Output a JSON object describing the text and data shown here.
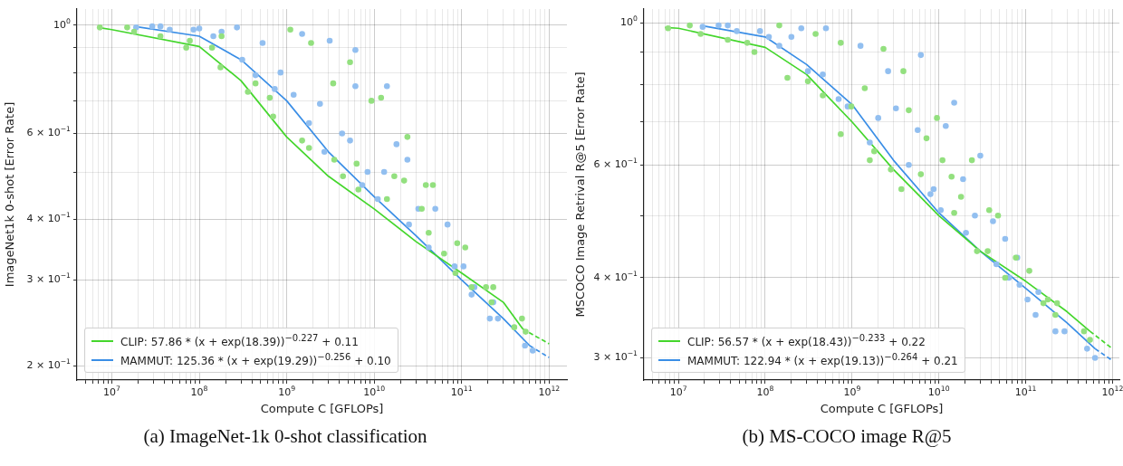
{
  "chart_data": [
    {
      "type": "scatter",
      "title": "(a) ImageNet-1k 0-shot classification",
      "xlabel": "Compute C [GFLOPs]",
      "ylabel": "ImageNet1k 0-shot [Error Rate]",
      "log": "xy",
      "grid": true,
      "legend": "bottom left",
      "marker": "circle",
      "xlim": [
        4000000.0,
        1600000000000.0
      ],
      "ylim": [
        0.187,
        1.08
      ],
      "xticks": [
        {
          "value": 5000000.0,
          "label": null
        },
        {
          "value": 6000000.0,
          "label": null
        },
        {
          "value": 7000000.0,
          "label": null
        },
        {
          "value": 8000000.0,
          "label": null
        },
        {
          "value": 9000000.0,
          "label": null
        },
        {
          "value": 10000000.0,
          "label": "10$^{7}$"
        },
        {
          "value": 20000000.0,
          "label": null
        },
        {
          "value": 30000000.0,
          "label": null
        },
        {
          "value": 40000000.0,
          "label": null
        },
        {
          "value": 50000000.0,
          "label": null
        },
        {
          "value": 60000000.0,
          "label": null
        },
        {
          "value": 70000000.0,
          "label": null
        },
        {
          "value": 80000000.0,
          "label": null
        },
        {
          "value": 90000000.0,
          "label": null
        },
        {
          "value": 100000000.0,
          "label": "10$^{8}$"
        },
        {
          "value": 200000000.0,
          "label": null
        },
        {
          "value": 300000000.0,
          "label": null
        },
        {
          "value": 400000000.0,
          "label": null
        },
        {
          "value": 500000000.0,
          "label": null
        },
        {
          "value": 600000000.0,
          "label": null
        },
        {
          "value": 700000000.0,
          "label": null
        },
        {
          "value": 800000000.0,
          "label": null
        },
        {
          "value": 900000000.0,
          "label": null
        },
        {
          "value": 1000000000.0,
          "label": "10$^{9}$"
        },
        {
          "value": 2000000000.0,
          "label": null
        },
        {
          "value": 3000000000.0,
          "label": null
        },
        {
          "value": 4000000000.0,
          "label": null
        },
        {
          "value": 5000000000.0,
          "label": null
        },
        {
          "value": 6000000000.0,
          "label": null
        },
        {
          "value": 7000000000.0,
          "label": null
        },
        {
          "value": 8000000000.0,
          "label": null
        },
        {
          "value": 9000000000.0,
          "label": null
        },
        {
          "value": 10000000000.0,
          "label": "10$^{10}$"
        },
        {
          "value": 20000000000.0,
          "label": null
        },
        {
          "value": 30000000000.0,
          "label": null
        },
        {
          "value": 40000000000.0,
          "label": null
        },
        {
          "value": 50000000000.0,
          "label": null
        },
        {
          "value": 60000000000.0,
          "label": null
        },
        {
          "value": 70000000000.0,
          "label": null
        },
        {
          "value": 80000000000.0,
          "label": null
        },
        {
          "value": 90000000000.0,
          "label": null
        },
        {
          "value": 100000000000.0,
          "label": "10$^{11}$"
        },
        {
          "value": 200000000000.0,
          "label": null
        },
        {
          "value": 300000000000.0,
          "label": null
        },
        {
          "value": 400000000000.0,
          "label": null
        },
        {
          "value": 500000000000.0,
          "label": null
        },
        {
          "value": 600000000000.0,
          "label": null
        },
        {
          "value": 700000000000.0,
          "label": null
        },
        {
          "value": 800000000000.0,
          "label": null
        },
        {
          "value": 900000000000.0,
          "label": null
        },
        {
          "value": 1000000000000.0,
          "label": "10$^{12}$"
        }
      ],
      "yticks": [
        {
          "value": 0.2,
          "label": "2 × 10$^{−1}$"
        },
        {
          "value": 0.3,
          "label": "3 × 10$^{−1}$"
        },
        {
          "value": 0.4,
          "label": "4 × 10$^{−1}$"
        },
        {
          "value": 0.5,
          "label": null
        },
        {
          "value": 0.6,
          "label": "6 × 10$^{−1}$"
        },
        {
          "value": 0.7,
          "label": null
        },
        {
          "value": 0.8,
          "label": null
        },
        {
          "value": 0.9,
          "label": null
        },
        {
          "value": 1,
          "label": "10$^{0}$"
        }
      ],
      "series": [
        {
          "color": "#93e07f",
          "x": [
            7300000.0,
            15000000.0,
            18000000.0,
            36000000.0,
            71000000.0,
            78000000.0,
            140000000.0,
            175000000.0,
            180000000.0,
            360000000.0,
            440000000.0,
            700000000.0,
            640000000.0,
            1500000000.0,
            1800000000.0,
            1100000000.0,
            1900000000.0,
            3500000000.0,
            4400000000.0,
            3400000000.0,
            5300000000.0,
            6300000000.0,
            6600000000.0,
            9300000000.0,
            12000000000.0,
            17000000000.0,
            14000000000.0,
            22000000000.0,
            24000000000.0,
            35000000000.0,
            39000000000.0,
            47000000000.0,
            42000000000.0,
            63000000000.0,
            89000000000.0,
            85000000000.0,
            110000000000.0,
            130000000000.0,
            190000000000.0,
            230000000000.0,
            220000000000.0,
            400000000000.0,
            490000000000.0,
            540000000000.0
          ],
          "values": [
            0.99,
            0.99,
            0.97,
            0.95,
            0.9,
            0.93,
            0.9,
            0.82,
            0.95,
            0.73,
            0.76,
            0.65,
            0.71,
            0.58,
            0.56,
            0.98,
            0.92,
            0.53,
            0.49,
            0.76,
            0.84,
            0.52,
            0.46,
            0.7,
            0.71,
            0.49,
            0.44,
            0.48,
            0.59,
            0.42,
            0.47,
            0.47,
            0.375,
            0.34,
            0.357,
            0.31,
            0.35,
            0.29,
            0.29,
            0.29,
            0.27,
            0.24,
            0.25,
            0.235
          ]
        },
        {
          "color": "#92bff0",
          "x": [
            19000000.0,
            29000000.0,
            36000000.0,
            46000000.0,
            86000000.0,
            100000000.0,
            145000000.0,
            180000000.0,
            270000000.0,
            310000000.0,
            440000000.0,
            530000000.0,
            730000000.0,
            850000000.0,
            1200000000.0,
            1500000000.0,
            1800000000.0,
            2400000000.0,
            3100000000.0,
            2700000000.0,
            4300000000.0,
            5300000000.0,
            6100000000.0,
            6100000000.0,
            7300000000.0,
            8400000000.0,
            11000000000.0,
            14000000000.0,
            13000000000.0,
            18000000000.0,
            24000000000.0,
            25000000000.0,
            32000000000.0,
            42000000000.0,
            50000000000.0,
            69000000000.0,
            83000000000.0,
            105000000000.0,
            140000000000.0,
            130000000000.0,
            210000000000.0,
            230000000000.0,
            260000000000.0,
            530000000000.0,
            650000000000.0
          ],
          "values": [
            0.99,
            0.995,
            0.995,
            0.98,
            0.98,
            0.985,
            0.95,
            0.97,
            0.99,
            0.85,
            0.79,
            0.92,
            0.74,
            0.8,
            0.72,
            0.96,
            0.63,
            0.69,
            0.93,
            0.55,
            0.6,
            0.58,
            0.89,
            0.75,
            0.47,
            0.5,
            0.44,
            0.75,
            0.5,
            0.57,
            0.53,
            0.39,
            0.42,
            0.35,
            0.42,
            0.39,
            0.32,
            0.32,
            0.29,
            0.28,
            0.25,
            0.27,
            0.25,
            0.22,
            0.215
          ]
        },
        {
          "type": "line",
          "marker": "none",
          "name": "CLIP: 57.86 * (x + exp(18.39))$^{−0.227}$ + 0.11",
          "color": "#44d62c",
          "x": [
            7000000.0,
            10000000.0,
            100000000.0,
            300000000.0,
            1000000000.0,
            3000000000.0,
            10000000000.0,
            30000000000.0,
            100000000000.0,
            300000000000.0,
            500000000000.0
          ],
          "values": [
            0.99,
            0.98,
            0.905,
            0.77,
            0.59,
            0.49,
            0.42,
            0.36,
            0.31,
            0.27,
            0.238
          ]
        },
        {
          "type": "line",
          "marker": "none",
          "color": "#44d62c",
          "line_style": "dashed",
          "x": [
            500000000000.0,
            1000000000000.0
          ],
          "values": [
            0.238,
            0.222
          ]
        },
        {
          "type": "line",
          "marker": "none",
          "name": "MAMMUT: 125.36 * (x + exp(19.29))$^{−0.256}$ + 0.10",
          "color": "#3a8ee6",
          "x": [
            18000000.0,
            100000000.0,
            300000000.0,
            1000000000.0,
            3000000000.0,
            10000000000.0,
            30000000000.0,
            100000000000.0,
            300000000000.0,
            600000000000.0
          ],
          "values": [
            0.995,
            0.95,
            0.85,
            0.7,
            0.55,
            0.445,
            0.37,
            0.3,
            0.25,
            0.22
          ]
        },
        {
          "type": "line",
          "marker": "none",
          "color": "#3a8ee6",
          "line_style": "dashed",
          "x": [
            600000000000.0,
            1000000000000.0
          ],
          "values": [
            0.22,
            0.208
          ]
        }
      ]
    },
    {
      "type": "scatter",
      "title": "(b) MS-COCO image R@5",
      "xlabel": "Compute C [GFLOPs]",
      "ylabel": "MSCOCO Image Retrival R@5 [Error Rate]",
      "log": "xy",
      "grid": true,
      "legend": "bottom left",
      "marker": "circle",
      "xlim": [
        4000000.0,
        1200000000000.0
      ],
      "ylim": [
        0.277,
        1.05
      ],
      "xticks": [
        {
          "value": 5000000.0,
          "label": null
        },
        {
          "value": 6000000.0,
          "label": null
        },
        {
          "value": 7000000.0,
          "label": null
        },
        {
          "value": 8000000.0,
          "label": null
        },
        {
          "value": 9000000.0,
          "label": null
        },
        {
          "value": 10000000.0,
          "label": "10$^{7}$"
        },
        {
          "value": 20000000.0,
          "label": null
        },
        {
          "value": 30000000.0,
          "label": null
        },
        {
          "value": 40000000.0,
          "label": null
        },
        {
          "value": 50000000.0,
          "label": null
        },
        {
          "value": 60000000.0,
          "label": null
        },
        {
          "value": 70000000.0,
          "label": null
        },
        {
          "value": 80000000.0,
          "label": null
        },
        {
          "value": 90000000.0,
          "label": null
        },
        {
          "value": 100000000.0,
          "label": "10$^{8}$"
        },
        {
          "value": 200000000.0,
          "label": null
        },
        {
          "value": 300000000.0,
          "label": null
        },
        {
          "value": 400000000.0,
          "label": null
        },
        {
          "value": 500000000.0,
          "label": null
        },
        {
          "value": 600000000.0,
          "label": null
        },
        {
          "value": 700000000.0,
          "label": null
        },
        {
          "value": 800000000.0,
          "label": null
        },
        {
          "value": 900000000.0,
          "label": null
        },
        {
          "value": 1000000000.0,
          "label": "10$^{9}$"
        },
        {
          "value": 2000000000.0,
          "label": null
        },
        {
          "value": 3000000000.0,
          "label": null
        },
        {
          "value": 4000000000.0,
          "label": null
        },
        {
          "value": 5000000000.0,
          "label": null
        },
        {
          "value": 6000000000.0,
          "label": null
        },
        {
          "value": 7000000000.0,
          "label": null
        },
        {
          "value": 8000000000.0,
          "label": null
        },
        {
          "value": 9000000000.0,
          "label": null
        },
        {
          "value": 10000000000.0,
          "label": "10$^{10}$"
        },
        {
          "value": 20000000000.0,
          "label": null
        },
        {
          "value": 30000000000.0,
          "label": null
        },
        {
          "value": 40000000000.0,
          "label": null
        },
        {
          "value": 50000000000.0,
          "label": null
        },
        {
          "value": 60000000000.0,
          "label": null
        },
        {
          "value": 70000000000.0,
          "label": null
        },
        {
          "value": 80000000000.0,
          "label": null
        },
        {
          "value": 90000000000.0,
          "label": null
        },
        {
          "value": 100000000000.0,
          "label": "10$^{11}$"
        },
        {
          "value": 200000000000.0,
          "label": null
        },
        {
          "value": 300000000000.0,
          "label": null
        },
        {
          "value": 400000000000.0,
          "label": null
        },
        {
          "value": 500000000000.0,
          "label": null
        },
        {
          "value": 600000000000.0,
          "label": null
        },
        {
          "value": 700000000000.0,
          "label": null
        },
        {
          "value": 800000000000.0,
          "label": null
        },
        {
          "value": 900000000000.0,
          "label": null
        },
        {
          "value": 1000000000000.0,
          "label": "10$^{12}$"
        }
      ],
      "yticks": [
        {
          "value": 0.3,
          "label": "3 × 10$^{−1}$"
        },
        {
          "value": 0.4,
          "label": "4 × 10$^{−1}$"
        },
        {
          "value": 0.5,
          "label": null
        },
        {
          "value": 0.6,
          "label": "6 × 10$^{−1}$"
        },
        {
          "value": 0.7,
          "label": null
        },
        {
          "value": 0.8,
          "label": null
        },
        {
          "value": 0.9,
          "label": null
        },
        {
          "value": 1,
          "label": "10$^{0}$"
        }
      ],
      "series": [
        {
          "color": "#93e07f",
          "x": [
            7600000.0,
            13500000.0,
            18000000.0,
            37000000.0,
            62000000.0,
            75000000.0,
            145000000.0,
            180000000.0,
            310000000.0,
            460000000.0,
            380000000.0,
            740000000.0,
            740000000.0,
            980000000.0,
            1400000000.0,
            1600000000.0,
            1800000000.0,
            2300000000.0,
            2800000000.0,
            3900000000.0,
            3700000000.0,
            4500000000.0,
            6200000000.0,
            7200000000.0,
            9500000000.0,
            11000000000.0,
            14000000000.0,
            15000000000.0,
            18000000000.0,
            24000000000.0,
            27500000000.0,
            36500000000.0,
            38000000000.0,
            48000000000.0,
            58000000000.0,
            77000000000.0,
            110000000000.0,
            160000000000.0,
            180000000000.0,
            230000000000.0,
            220000000000.0,
            470000000000.0,
            550000000000.0
          ],
          "values": [
            0.98,
            0.99,
            0.96,
            0.94,
            0.93,
            0.9,
            0.99,
            0.82,
            0.81,
            0.77,
            0.96,
            0.93,
            0.67,
            0.74,
            0.79,
            0.61,
            0.63,
            0.91,
            0.59,
            0.84,
            0.55,
            0.73,
            0.58,
            0.66,
            0.71,
            0.61,
            0.575,
            0.505,
            0.535,
            0.61,
            0.44,
            0.44,
            0.51,
            0.5,
            0.4,
            0.43,
            0.41,
            0.365,
            0.37,
            0.365,
            0.35,
            0.33,
            0.32
          ]
        },
        {
          "color": "#92bff0",
          "x": [
            19000000.0,
            29000000.0,
            37000000.0,
            47000000.0,
            87000000.0,
            110000000.0,
            145000000.0,
            200000000.0,
            260000000.0,
            310000000.0,
            460000000.0,
            500000000.0,
            700000000.0,
            890000000.0,
            1250000000.0,
            1600000000.0,
            2000000000.0,
            2600000000.0,
            3200000000.0,
            4500000000.0,
            5700000000.0,
            6200000000.0,
            8000000000.0,
            8700000000.0,
            10500000000.0,
            12000000000.0,
            15000000000.0,
            19000000000.0,
            20500000000.0,
            26000000000.0,
            30000000000.0,
            42000000000.0,
            46000000000.0,
            58000000000.0,
            64000000000.0,
            80000000000.0,
            85000000000.0,
            105000000000.0,
            130000000000.0,
            140000000000.0,
            220000000000.0,
            280000000000.0,
            510000000000.0,
            630000000000.0
          ],
          "values": [
            0.985,
            0.99,
            0.99,
            0.97,
            0.97,
            0.95,
            0.92,
            0.95,
            0.98,
            0.84,
            0.83,
            0.98,
            0.76,
            0.74,
            0.92,
            0.65,
            0.71,
            0.84,
            0.735,
            0.6,
            0.68,
            0.89,
            0.54,
            0.55,
            0.51,
            0.69,
            0.75,
            0.57,
            0.47,
            0.5,
            0.62,
            0.49,
            0.42,
            0.46,
            0.4,
            0.43,
            0.39,
            0.37,
            0.35,
            0.38,
            0.33,
            0.33,
            0.31,
            0.3
          ]
        },
        {
          "type": "line",
          "marker": "none",
          "name": "CLIP: 56.57 * (x + exp(18.43))$^{−0.233}$ + 0.22",
          "color": "#44d62c",
          "x": [
            7000000.0,
            10000000.0,
            100000000.0,
            300000000.0,
            1000000000.0,
            3000000000.0,
            10000000000.0,
            30000000000.0,
            100000000000.0,
            300000000000.0,
            550000000000.0
          ],
          "values": [
            0.983,
            0.98,
            0.915,
            0.83,
            0.7,
            0.59,
            0.5,
            0.44,
            0.395,
            0.354,
            0.33
          ]
        },
        {
          "type": "line",
          "marker": "none",
          "color": "#44d62c",
          "line_style": "dashed",
          "x": [
            550000000000.0,
            1000000000000.0
          ],
          "values": [
            0.33,
            0.31
          ]
        },
        {
          "type": "line",
          "marker": "none",
          "name": "MAMMUT: 122.94 * (x + exp(19.13))$^{−0.264}$ + 0.21",
          "color": "#3a8ee6",
          "x": [
            18000000.0,
            100000000.0,
            300000000.0,
            1000000000.0,
            3000000000.0,
            10000000000.0,
            30000000000.0,
            100000000000.0,
            300000000000.0,
            630000000000.0
          ],
          "values": [
            0.99,
            0.95,
            0.86,
            0.745,
            0.61,
            0.505,
            0.44,
            0.385,
            0.34,
            0.31
          ]
        },
        {
          "type": "line",
          "marker": "none",
          "color": "#3a8ee6",
          "line_style": "dashed",
          "x": [
            630000000000.0,
            1000000000000.0
          ],
          "values": [
            0.31,
            0.297
          ]
        }
      ]
    }
  ]
}
